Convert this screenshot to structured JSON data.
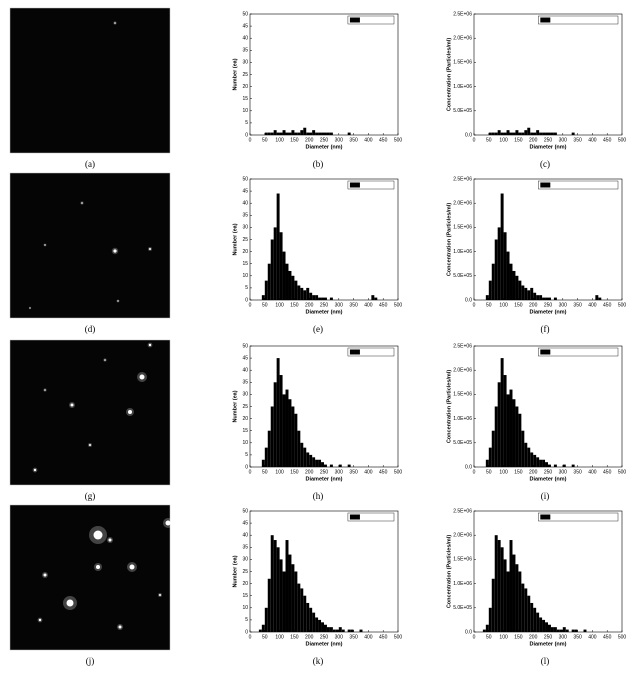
{
  "captions": [
    "(a)",
    "(b)",
    "(c)",
    "(d)",
    "(e)",
    "(f)",
    "(g)",
    "(h)",
    "(i)",
    "(j)",
    "(k)",
    "(l)"
  ],
  "chart_data": [
    {
      "type": "histogram",
      "xlabel": "Diameter (nm)",
      "ylabel": "Number (ea)",
      "legend": "upper right",
      "bins": [
        0,
        10,
        20,
        30,
        40,
        50,
        60,
        70,
        80,
        90,
        100,
        110,
        120,
        130,
        140,
        150,
        160,
        170,
        180,
        190,
        200,
        210,
        220,
        230,
        240,
        250,
        260,
        270,
        280,
        290,
        300,
        310,
        320,
        330,
        340,
        350,
        360,
        370,
        380,
        390,
        400,
        410,
        420,
        430,
        440,
        450,
        460,
        470,
        480,
        490,
        500
      ],
      "series": [
        {
          "name": "Number (ea)",
          "color": "#000000",
          "values": [
            0,
            0,
            0,
            0,
            0,
            1,
            1,
            1,
            2,
            1,
            1,
            2,
            1,
            1,
            2,
            1,
            1,
            2,
            3,
            1,
            1,
            2,
            1,
            1,
            1,
            1,
            1,
            1,
            0,
            0,
            0,
            0,
            0,
            1,
            0,
            0,
            0,
            0,
            0,
            0,
            0,
            0,
            0,
            0,
            0,
            0,
            0,
            0,
            0,
            0
          ]
        }
      ],
      "xlim": [
        0,
        500
      ],
      "xticks": [
        0,
        50,
        100,
        150,
        200,
        250,
        300,
        350,
        400,
        450,
        500
      ],
      "ylim": [
        0,
        50
      ],
      "yticks": [
        0,
        5,
        10,
        15,
        20,
        25,
        30,
        35,
        40,
        45,
        50
      ]
    },
    {
      "type": "histogram",
      "xlabel": "Diameter (nm)",
      "ylabel": "Concentration (Particles/ml)",
      "legend": "upper right",
      "bins": [
        0,
        10,
        20,
        30,
        40,
        50,
        60,
        70,
        80,
        90,
        100,
        110,
        120,
        130,
        140,
        150,
        160,
        170,
        180,
        190,
        200,
        210,
        220,
        230,
        240,
        250,
        260,
        270,
        280,
        290,
        300,
        310,
        320,
        330,
        340,
        350,
        360,
        370,
        380,
        390,
        400,
        410,
        420,
        430,
        440,
        450,
        460,
        470,
        480,
        490,
        500
      ],
      "series": [
        {
          "name": "Concentration (Particles/ml)",
          "color": "#000000",
          "values": [
            0,
            0,
            0,
            0,
            0,
            50000.0,
            50000.0,
            50000.0,
            100000.0,
            50000.0,
            50000.0,
            100000.0,
            50000.0,
            50000.0,
            100000.0,
            50000.0,
            50000.0,
            100000.0,
            150000.0,
            50000.0,
            50000.0,
            100000.0,
            50000.0,
            50000.0,
            50000.0,
            50000.0,
            50000.0,
            50000.0,
            0,
            0,
            0,
            0,
            0,
            50000.0,
            0,
            0,
            0,
            0,
            0,
            0,
            0,
            0,
            0,
            0,
            0,
            0,
            0,
            0,
            0,
            0
          ]
        }
      ],
      "xlim": [
        0,
        500
      ],
      "xticks": [
        0,
        50,
        100,
        150,
        200,
        250,
        300,
        350,
        400,
        450,
        500
      ],
      "ylim": [
        0,
        2500000
      ],
      "yticks": [
        {
          "value": 0,
          "label": "0.0"
        },
        {
          "value": 500000,
          "label": "5.0E+05"
        },
        {
          "value": 1000000,
          "label": "1.0E+06"
        },
        {
          "value": 1500000,
          "label": "1.5E+06"
        },
        {
          "value": 2000000,
          "label": "2.0E+06"
        },
        {
          "value": 2500000,
          "label": "2.5E+06"
        }
      ]
    },
    {
      "type": "histogram",
      "xlabel": "Diameter (nm)",
      "ylabel": "Number (ea)",
      "legend": "upper right",
      "bins": [
        0,
        10,
        20,
        30,
        40,
        50,
        60,
        70,
        80,
        90,
        100,
        110,
        120,
        130,
        140,
        150,
        160,
        170,
        180,
        190,
        200,
        210,
        220,
        230,
        240,
        250,
        260,
        270,
        280,
        290,
        300,
        310,
        320,
        330,
        340,
        350,
        360,
        370,
        380,
        390,
        400,
        410,
        420,
        430,
        440,
        450,
        460,
        470,
        480,
        490,
        500
      ],
      "series": [
        {
          "name": "Number (ea)",
          "color": "#000000",
          "values": [
            0,
            0,
            0,
            0,
            2,
            8,
            15,
            25,
            30,
            44,
            28,
            20,
            15,
            12,
            10,
            8,
            6,
            5,
            4,
            5,
            3,
            2,
            2,
            1,
            1,
            1,
            0,
            1,
            0,
            0,
            0,
            0,
            0,
            0,
            0,
            0,
            0,
            0,
            0,
            0,
            0,
            2,
            1,
            0,
            0,
            0,
            0,
            0,
            0,
            0
          ]
        }
      ],
      "xlim": [
        0,
        500
      ],
      "xticks": [
        0,
        50,
        100,
        150,
        200,
        250,
        300,
        350,
        400,
        450,
        500
      ],
      "ylim": [
        0,
        50
      ],
      "yticks": [
        0,
        5,
        10,
        15,
        20,
        25,
        30,
        35,
        40,
        45,
        50
      ]
    },
    {
      "type": "histogram",
      "xlabel": "Diameter (nm)",
      "ylabel": "Concentration (Particles/ml)",
      "legend": "upper right",
      "bins": [
        0,
        10,
        20,
        30,
        40,
        50,
        60,
        70,
        80,
        90,
        100,
        110,
        120,
        130,
        140,
        150,
        160,
        170,
        180,
        190,
        200,
        210,
        220,
        230,
        240,
        250,
        260,
        270,
        280,
        290,
        300,
        310,
        320,
        330,
        340,
        350,
        360,
        370,
        380,
        390,
        400,
        410,
        420,
        430,
        440,
        450,
        460,
        470,
        480,
        490,
        500
      ],
      "series": [
        {
          "name": "Concentration (Particles/ml)",
          "color": "#000000",
          "values": [
            0,
            0,
            0,
            0,
            100000.0,
            400000.0,
            750000.0,
            1250000.0,
            1500000.0,
            2200000.0,
            1400000.0,
            1000000.0,
            750000.0,
            600000.0,
            500000.0,
            400000.0,
            300000.0,
            250000.0,
            200000.0,
            250000.0,
            150000.0,
            100000.0,
            100000.0,
            50000.0,
            50000.0,
            50000.0,
            0,
            50000.0,
            0,
            0,
            0,
            0,
            0,
            0,
            0,
            0,
            0,
            0,
            0,
            0,
            0,
            100000.0,
            50000.0,
            0,
            0,
            0,
            0,
            0,
            0,
            0
          ]
        }
      ],
      "xlim": [
        0,
        500
      ],
      "xticks": [
        0,
        50,
        100,
        150,
        200,
        250,
        300,
        350,
        400,
        450,
        500
      ],
      "ylim": [
        0,
        2500000
      ],
      "yticks": [
        {
          "value": 0,
          "label": "0.0"
        },
        {
          "value": 500000,
          "label": "5.0E+05"
        },
        {
          "value": 1000000,
          "label": "1.0E+06"
        },
        {
          "value": 1500000,
          "label": "1.5E+06"
        },
        {
          "value": 2000000,
          "label": "2.0E+06"
        },
        {
          "value": 2500000,
          "label": "2.5E+06"
        }
      ]
    },
    {
      "type": "histogram",
      "xlabel": "Diameter (nm)",
      "ylabel": "Number (ea)",
      "legend": "upper right",
      "bins": [
        0,
        10,
        20,
        30,
        40,
        50,
        60,
        70,
        80,
        90,
        100,
        110,
        120,
        130,
        140,
        150,
        160,
        170,
        180,
        190,
        200,
        210,
        220,
        230,
        240,
        250,
        260,
        270,
        280,
        290,
        300,
        310,
        320,
        330,
        340,
        350,
        360,
        370,
        380,
        390,
        400,
        410,
        420,
        430,
        440,
        450,
        460,
        470,
        480,
        490,
        500
      ],
      "series": [
        {
          "name": "Number (ea)",
          "color": "#000000",
          "values": [
            0,
            0,
            0,
            0,
            3,
            8,
            15,
            25,
            35,
            45,
            38,
            30,
            32,
            28,
            25,
            22,
            15,
            10,
            8,
            6,
            5,
            4,
            3,
            3,
            2,
            1,
            0,
            1,
            0,
            0,
            1,
            0,
            0,
            1,
            0,
            0,
            0,
            0,
            0,
            0,
            0,
            0,
            0,
            0,
            0,
            0,
            0,
            0,
            0,
            0
          ]
        }
      ],
      "xlim": [
        0,
        500
      ],
      "xticks": [
        0,
        50,
        100,
        150,
        200,
        250,
        300,
        350,
        400,
        450,
        500
      ],
      "ylim": [
        0,
        50
      ],
      "yticks": [
        0,
        5,
        10,
        15,
        20,
        25,
        30,
        35,
        40,
        45,
        50
      ]
    },
    {
      "type": "histogram",
      "xlabel": "Diameter (nm)",
      "ylabel": "Concentration (Particles/ml)",
      "legend": "upper right",
      "bins": [
        0,
        10,
        20,
        30,
        40,
        50,
        60,
        70,
        80,
        90,
        100,
        110,
        120,
        130,
        140,
        150,
        160,
        170,
        180,
        190,
        200,
        210,
        220,
        230,
        240,
        250,
        260,
        270,
        280,
        290,
        300,
        310,
        320,
        330,
        340,
        350,
        360,
        370,
        380,
        390,
        400,
        410,
        420,
        430,
        440,
        450,
        460,
        470,
        480,
        490,
        500
      ],
      "series": [
        {
          "name": "Concentration (Particles/ml)",
          "color": "#000000",
          "values": [
            0,
            0,
            0,
            0,
            150000.0,
            400000.0,
            750000.0,
            1250000.0,
            1750000.0,
            2250000.0,
            1900000.0,
            1500000.0,
            1600000.0,
            1400000.0,
            1250000.0,
            1100000.0,
            750000.0,
            500000.0,
            400000.0,
            300000.0,
            250000.0,
            200000.0,
            150000.0,
            150000.0,
            100000.0,
            50000.0,
            0,
            50000.0,
            0,
            0,
            50000.0,
            0,
            0,
            50000.0,
            0,
            0,
            0,
            0,
            0,
            0,
            0,
            0,
            0,
            0,
            0,
            0,
            0,
            0,
            0,
            0
          ]
        }
      ],
      "xlim": [
        0,
        500
      ],
      "xticks": [
        0,
        50,
        100,
        150,
        200,
        250,
        300,
        350,
        400,
        450,
        500
      ],
      "ylim": [
        0,
        2500000
      ],
      "yticks": [
        {
          "value": 0,
          "label": "0.0"
        },
        {
          "value": 500000,
          "label": "5.0E+05"
        },
        {
          "value": 1000000,
          "label": "1.0E+06"
        },
        {
          "value": 1500000,
          "label": "1.5E+06"
        },
        {
          "value": 2000000,
          "label": "2.0E+06"
        },
        {
          "value": 2500000,
          "label": "2.5E+06"
        }
      ]
    },
    {
      "type": "histogram",
      "xlabel": "Diameter (nm)",
      "ylabel": "Number (ea)",
      "legend": "upper right",
      "bins": [
        0,
        10,
        20,
        30,
        40,
        50,
        60,
        70,
        80,
        90,
        100,
        110,
        120,
        130,
        140,
        150,
        160,
        170,
        180,
        190,
        200,
        210,
        220,
        230,
        240,
        250,
        260,
        270,
        280,
        290,
        300,
        310,
        320,
        330,
        340,
        350,
        360,
        370,
        380,
        390,
        400,
        410,
        420,
        430,
        440,
        450,
        460,
        470,
        480,
        490,
        500
      ],
      "series": [
        {
          "name": "Number (ea)",
          "color": "#000000",
          "values": [
            0,
            0,
            0,
            1,
            3,
            10,
            22,
            40,
            38,
            35,
            30,
            25,
            38,
            32,
            28,
            25,
            20,
            18,
            15,
            12,
            10,
            8,
            6,
            5,
            4,
            3,
            2,
            2,
            1,
            1,
            2,
            1,
            0,
            1,
            1,
            0,
            0,
            1,
            0,
            0,
            0,
            0,
            0,
            0,
            0,
            0,
            0,
            0,
            0,
            0
          ]
        }
      ],
      "xlim": [
        0,
        500
      ],
      "xticks": [
        0,
        50,
        100,
        150,
        200,
        250,
        300,
        350,
        400,
        450,
        500
      ],
      "ylim": [
        0,
        50
      ],
      "yticks": [
        0,
        5,
        10,
        15,
        20,
        25,
        30,
        35,
        40,
        45,
        50
      ]
    },
    {
      "type": "histogram",
      "xlabel": "Diameter (nm)",
      "ylabel": "Concentration (Particles/ml)",
      "legend": "upper right",
      "bins": [
        0,
        10,
        20,
        30,
        40,
        50,
        60,
        70,
        80,
        90,
        100,
        110,
        120,
        130,
        140,
        150,
        160,
        170,
        180,
        190,
        200,
        210,
        220,
        230,
        240,
        250,
        260,
        270,
        280,
        290,
        300,
        310,
        320,
        330,
        340,
        350,
        360,
        370,
        380,
        390,
        400,
        410,
        420,
        430,
        440,
        450,
        460,
        470,
        480,
        490,
        500
      ],
      "series": [
        {
          "name": "Concentration (Particles/ml)",
          "color": "#000000",
          "values": [
            0,
            0,
            0,
            50000.0,
            150000.0,
            500000.0,
            1100000.0,
            2000000.0,
            1900000.0,
            1750000.0,
            1500000.0,
            1250000.0,
            1900000.0,
            1600000.0,
            1400000.0,
            1250000.0,
            1000000.0,
            900000.0,
            750000.0,
            600000.0,
            500000.0,
            400000.0,
            300000.0,
            250000.0,
            200000.0,
            150000.0,
            100000.0,
            100000.0,
            50000.0,
            50000.0,
            100000.0,
            50000.0,
            0,
            50000.0,
            50000.0,
            0,
            0,
            50000.0,
            0,
            0,
            0,
            0,
            0,
            0,
            0,
            0,
            0,
            0,
            0,
            0
          ]
        }
      ],
      "xlim": [
        0,
        500
      ],
      "xticks": [
        0,
        50,
        100,
        150,
        200,
        250,
        300,
        350,
        400,
        450,
        500
      ],
      "ylim": [
        0,
        2500000
      ],
      "yticks": [
        {
          "value": 0,
          "label": "0.0"
        },
        {
          "value": 500000,
          "label": "5.0E+05"
        },
        {
          "value": 1000000,
          "label": "1.0E+06"
        },
        {
          "value": 1500000,
          "label": "1.5E+06"
        },
        {
          "value": 2000000,
          "label": "2.0E+06"
        },
        {
          "value": 2500000,
          "label": "2.5E+06"
        }
      ]
    }
  ]
}
